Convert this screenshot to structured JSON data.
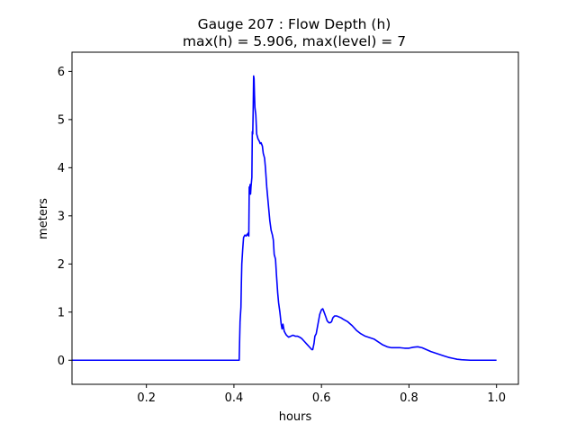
{
  "chart_data": {
    "type": "line",
    "title": "Gauge 207 : Flow Depth (h)",
    "subtitle": "max(h) =   5.906,    max(level) = 7",
    "xlabel": "hours",
    "ylabel": "meters",
    "xlim": [
      0.03,
      1.05
    ],
    "ylim": [
      -0.5,
      6.4
    ],
    "xticks": [
      0.2,
      0.4,
      0.6,
      0.8,
      1.0
    ],
    "xtick_labels": [
      "0.2",
      "0.4",
      "0.6",
      "0.8",
      "1.0"
    ],
    "yticks": [
      0,
      1,
      2,
      3,
      4,
      5,
      6
    ],
    "ytick_labels": [
      "0",
      "1",
      "2",
      "3",
      "4",
      "5",
      "6"
    ],
    "grid": false,
    "series": [
      {
        "color": "#0000ff",
        "points": [
          [
            0.03,
            0.0
          ],
          [
            0.1,
            0.0
          ],
          [
            0.2,
            0.0
          ],
          [
            0.3,
            0.0
          ],
          [
            0.4,
            0.0
          ],
          [
            0.412,
            0.0
          ],
          [
            0.413,
            0.4
          ],
          [
            0.414,
            0.8
          ],
          [
            0.416,
            1.1
          ],
          [
            0.417,
            1.6
          ],
          [
            0.418,
            2.0
          ],
          [
            0.42,
            2.3
          ],
          [
            0.422,
            2.55
          ],
          [
            0.425,
            2.6
          ],
          [
            0.428,
            2.58
          ],
          [
            0.43,
            2.62
          ],
          [
            0.432,
            2.6
          ],
          [
            0.433,
            2.65
          ],
          [
            0.434,
            2.58
          ],
          [
            0.435,
            3.6
          ],
          [
            0.436,
            3.55
          ],
          [
            0.437,
            3.65
          ],
          [
            0.438,
            3.45
          ],
          [
            0.439,
            3.6
          ],
          [
            0.44,
            3.7
          ],
          [
            0.441,
            3.8
          ],
          [
            0.442,
            4.75
          ],
          [
            0.443,
            4.7
          ],
          [
            0.444,
            5.2
          ],
          [
            0.445,
            5.906
          ],
          [
            0.446,
            5.85
          ],
          [
            0.447,
            5.5
          ],
          [
            0.448,
            5.25
          ],
          [
            0.45,
            5.1
          ],
          [
            0.452,
            4.7
          ],
          [
            0.455,
            4.6
          ],
          [
            0.458,
            4.55
          ],
          [
            0.46,
            4.5
          ],
          [
            0.462,
            4.52
          ],
          [
            0.465,
            4.45
          ],
          [
            0.467,
            4.3
          ],
          [
            0.47,
            4.2
          ],
          [
            0.472,
            4.0
          ],
          [
            0.475,
            3.6
          ],
          [
            0.478,
            3.3
          ],
          [
            0.48,
            3.1
          ],
          [
            0.482,
            2.9
          ],
          [
            0.485,
            2.7
          ],
          [
            0.488,
            2.6
          ],
          [
            0.49,
            2.5
          ],
          [
            0.492,
            2.2
          ],
          [
            0.495,
            2.1
          ],
          [
            0.497,
            1.8
          ],
          [
            0.5,
            1.4
          ],
          [
            0.502,
            1.2
          ],
          [
            0.505,
            1.0
          ],
          [
            0.508,
            0.75
          ],
          [
            0.51,
            0.65
          ],
          [
            0.512,
            0.75
          ],
          [
            0.515,
            0.6
          ],
          [
            0.518,
            0.55
          ],
          [
            0.52,
            0.52
          ],
          [
            0.525,
            0.48
          ],
          [
            0.53,
            0.5
          ],
          [
            0.535,
            0.52
          ],
          [
            0.54,
            0.5
          ],
          [
            0.545,
            0.5
          ],
          [
            0.55,
            0.48
          ],
          [
            0.555,
            0.45
          ],
          [
            0.56,
            0.4
          ],
          [
            0.565,
            0.35
          ],
          [
            0.57,
            0.3
          ],
          [
            0.575,
            0.25
          ],
          [
            0.578,
            0.22
          ],
          [
            0.58,
            0.22
          ],
          [
            0.583,
            0.35
          ],
          [
            0.585,
            0.5
          ],
          [
            0.588,
            0.55
          ],
          [
            0.59,
            0.65
          ],
          [
            0.593,
            0.8
          ],
          [
            0.596,
            0.95
          ],
          [
            0.6,
            1.05
          ],
          [
            0.603,
            1.07
          ],
          [
            0.606,
            1.0
          ],
          [
            0.61,
            0.9
          ],
          [
            0.613,
            0.82
          ],
          [
            0.617,
            0.78
          ],
          [
            0.62,
            0.78
          ],
          [
            0.623,
            0.8
          ],
          [
            0.626,
            0.88
          ],
          [
            0.63,
            0.92
          ],
          [
            0.635,
            0.92
          ],
          [
            0.64,
            0.9
          ],
          [
            0.645,
            0.88
          ],
          [
            0.65,
            0.85
          ],
          [
            0.66,
            0.8
          ],
          [
            0.67,
            0.72
          ],
          [
            0.68,
            0.62
          ],
          [
            0.69,
            0.55
          ],
          [
            0.7,
            0.5
          ],
          [
            0.71,
            0.47
          ],
          [
            0.72,
            0.44
          ],
          [
            0.73,
            0.38
          ],
          [
            0.74,
            0.32
          ],
          [
            0.75,
            0.28
          ],
          [
            0.76,
            0.26
          ],
          [
            0.77,
            0.26
          ],
          [
            0.78,
            0.26
          ],
          [
            0.79,
            0.25
          ],
          [
            0.8,
            0.25
          ],
          [
            0.81,
            0.27
          ],
          [
            0.82,
            0.28
          ],
          [
            0.83,
            0.26
          ],
          [
            0.84,
            0.22
          ],
          [
            0.85,
            0.18
          ],
          [
            0.86,
            0.15
          ],
          [
            0.87,
            0.12
          ],
          [
            0.88,
            0.09
          ],
          [
            0.89,
            0.06
          ],
          [
            0.9,
            0.04
          ],
          [
            0.91,
            0.02
          ],
          [
            0.92,
            0.01
          ],
          [
            0.94,
            0.0
          ],
          [
            0.96,
            0.0
          ],
          [
            0.98,
            0.0
          ],
          [
            1.0,
            0.0
          ]
        ]
      }
    ]
  }
}
